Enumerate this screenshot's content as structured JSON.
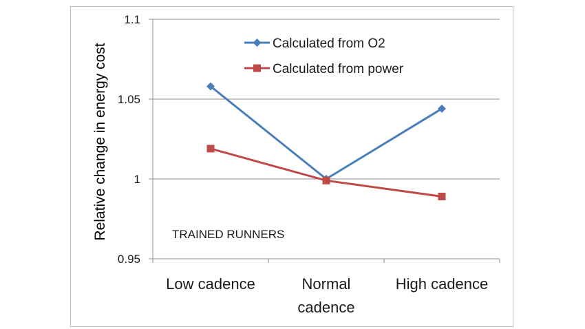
{
  "chart_data": {
    "type": "line",
    "title": "",
    "xlabel": "",
    "ylabel": "Relative change in energy cost",
    "ylim": [
      0.95,
      1.1
    ],
    "yticks": [
      0.95,
      1,
      1.05,
      1.1
    ],
    "ytick_labels": [
      "0.95",
      "1",
      "1.05",
      "1.1"
    ],
    "categories": [
      [
        "Low cadence"
      ],
      [
        "Normal",
        "cadence"
      ],
      [
        "High cadence"
      ]
    ],
    "grid": true,
    "legend_position": "top-right",
    "series": [
      {
        "name": "Calculated from O2",
        "color": "#4a7ebb",
        "marker": "diamond",
        "values": [
          1.058,
          1.0,
          1.044
        ]
      },
      {
        "name": "Calculated from power",
        "color": "#be4b48",
        "marker": "square",
        "values": [
          1.019,
          0.999,
          0.989
        ]
      }
    ],
    "annotation": "TRAINED RUNNERS"
  }
}
